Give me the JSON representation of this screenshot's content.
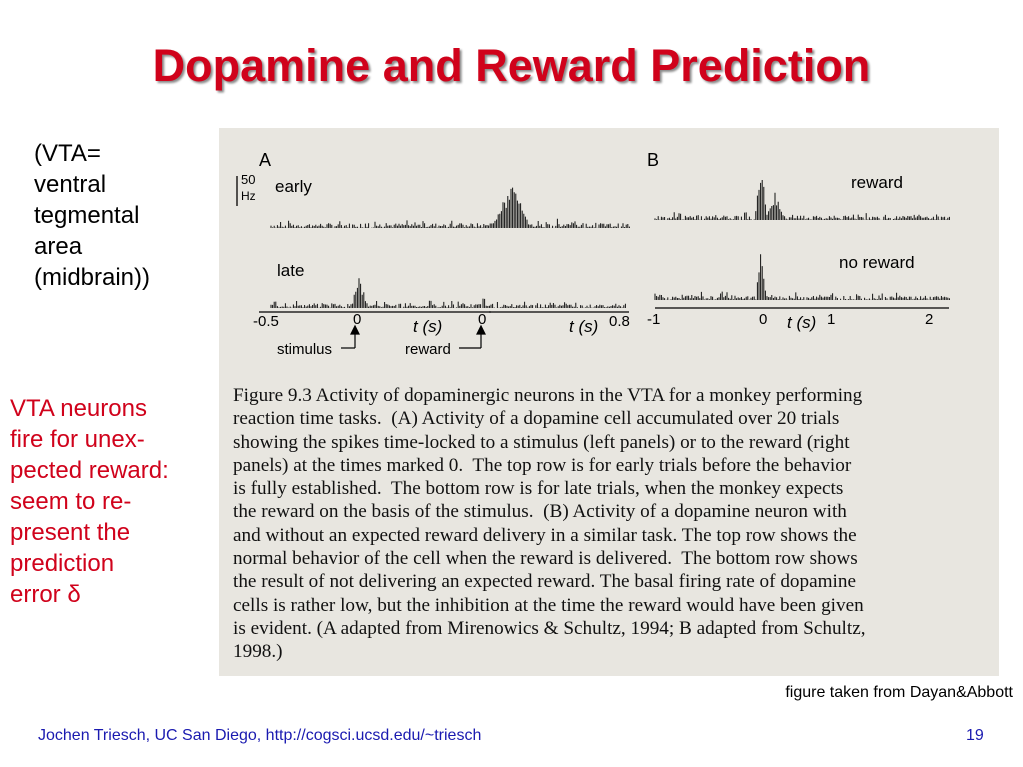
{
  "slide": {
    "title": "Dopamine and Reward Prediction",
    "side_note": "(VTA=\nventral\ntegmental\narea\n(midbrain))",
    "side_text": "VTA neurons\nfire for unex-\npected reward:\nseem to re-\npresent the\nprediction\nerror δ",
    "credit": "figure taken from Dayan&Abbott",
    "footer": "Jochen Triesch, UC San Diego, http://cogsci.ucsd.edu/~triesch",
    "page_number": "19"
  },
  "figure": {
    "panel_a": "A",
    "panel_b": "B",
    "scale": "50",
    "scale_unit": "Hz",
    "label_early": "early",
    "label_late": "late",
    "label_reward": "reward",
    "label_no_reward": "no reward",
    "tick_a1_left": "-0.5",
    "tick_a1_zero": "0",
    "tick_a2_zero": "0",
    "tick_a2_right": "0.8",
    "tick_b_left": "-1",
    "tick_b_zero": "0",
    "tick_b_one": "1",
    "tick_b_two": "2",
    "axis_label": "t (s)",
    "marker_stimulus": "stimulus",
    "marker_reward": "reward",
    "caption": "Figure 9.3 Activity of dopaminergic neurons in the VTA for a monkey performing\nreaction time tasks.  (A) Activity of a dopamine cell accumulated over 20 trials\nshowing the spikes time-locked to a stimulus (left panels) or to the reward (right\npanels) at the times marked 0.  The top row is for early trials before the behavior\nis fully established.  The bottom row is for late trials, when the monkey expects\nthe reward on the basis of the stimulus.  (B) Activity of a dopamine neuron with\nand without an expected reward delivery in a similar task. The top row shows the\nnormal behavior of the cell when the reward is delivered.  The bottom row shows\nthe result of not delivering an expected reward. The basal firing rate of dopamine\ncells is rather low, but the inhibition at the time the reward would have been given\nis evident. (A adapted from Mirenowics & Schultz, 1994; B adapted from Schultz,\n1998.)"
  }
}
